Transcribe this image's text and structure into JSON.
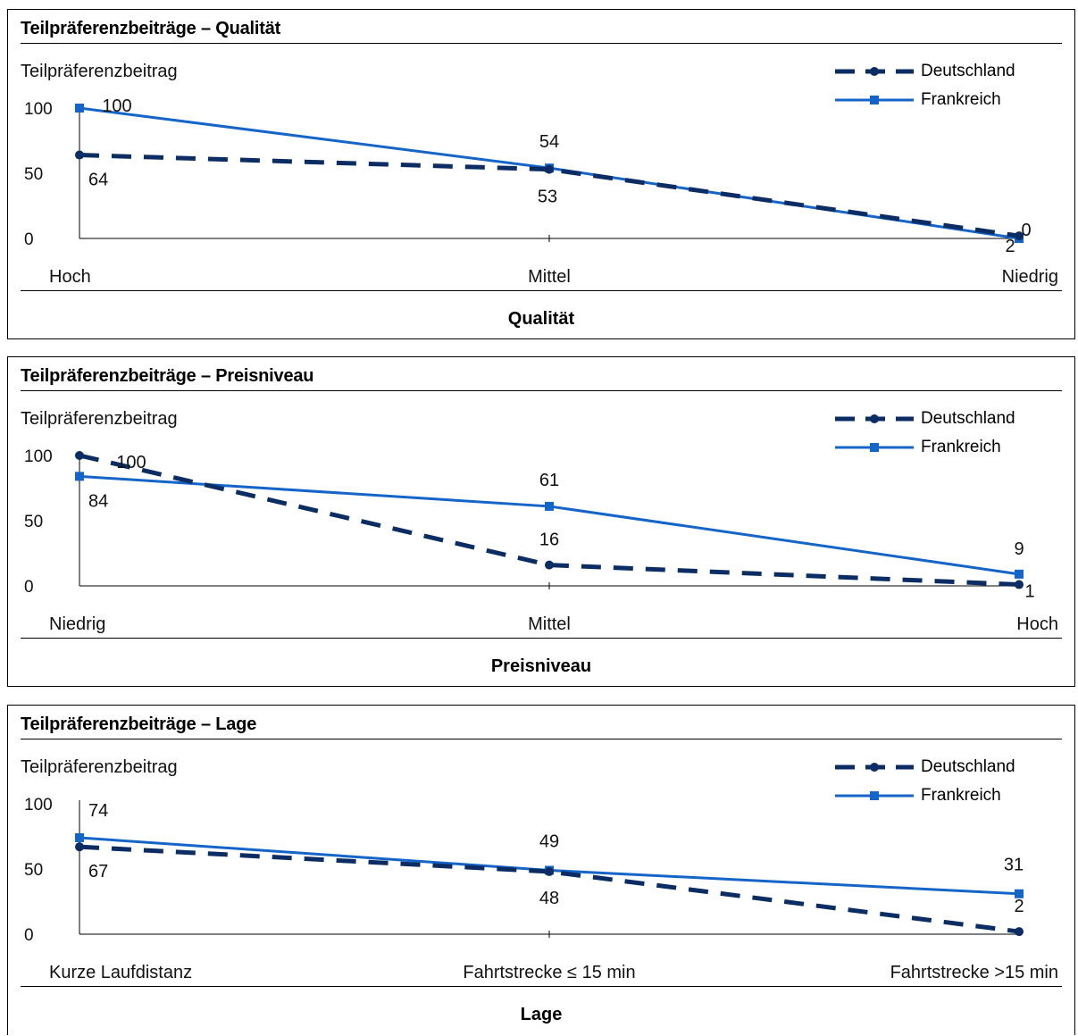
{
  "y_axis_label": "Teilpräferenzbeitrag",
  "legend": [
    {
      "name": "Deutschland",
      "color": "#0b2d63",
      "style": "dashed",
      "marker": "circle"
    },
    {
      "name": "Frankreich",
      "color": "#1565c8",
      "style": "solid",
      "marker": "square"
    }
  ],
  "panels": [
    {
      "title": "Teilpräferenzbeiträge – Qualität",
      "axis_title": "Qualität"
    },
    {
      "title": "Teilpräferenzbeiträge – Preisniveau",
      "axis_title": "Preisniveau"
    },
    {
      "title": "Teilpräferenzbeiträge – Lage",
      "axis_title": "Lage"
    }
  ],
  "chart_data": [
    {
      "type": "line",
      "title": "Teilpräferenzbeiträge – Qualität",
      "xlabel": "Qualität",
      "ylabel": "Teilpräferenzbeitrag",
      "categories": [
        "Hoch",
        "Mittel",
        "Niedrig"
      ],
      "yticks": [
        "0",
        "50",
        "100"
      ],
      "ylim": [
        0,
        100
      ],
      "series": [
        {
          "name": "Deutschland",
          "values": [
            64,
            53,
            2
          ],
          "labels": [
            "64",
            "53",
            "2"
          ]
        },
        {
          "name": "Frankreich",
          "values": [
            100,
            54,
            0
          ],
          "labels": [
            "100",
            "54",
            "0"
          ]
        }
      ]
    },
    {
      "type": "line",
      "title": "Teilpräferenzbeiträge – Preisniveau",
      "xlabel": "Preisniveau",
      "ylabel": "Teilpräferenzbeitrag",
      "categories": [
        "Niedrig",
        "Mittel",
        "Hoch"
      ],
      "yticks": [
        "0",
        "50",
        "100"
      ],
      "ylim": [
        0,
        100
      ],
      "series": [
        {
          "name": "Deutschland",
          "values": [
            100,
            16,
            1
          ],
          "labels": [
            "100",
            "16",
            "1"
          ]
        },
        {
          "name": "Frankreich",
          "values": [
            84,
            61,
            9
          ],
          "labels": [
            "84",
            "61",
            "9"
          ]
        }
      ]
    },
    {
      "type": "line",
      "title": "Teilpräferenzbeiträge – Lage",
      "xlabel": "Lage",
      "ylabel": "Teilpräferenzbeitrag",
      "categories": [
        "Kurze Laufdistanz",
        "Fahrtstrecke ≤ 15 min",
        "Fahrtstrecke >15 min"
      ],
      "yticks": [
        "0",
        "50",
        "100"
      ],
      "ylim": [
        0,
        100
      ],
      "series": [
        {
          "name": "Deutschland",
          "values": [
            67,
            48,
            2
          ],
          "labels": [
            "67",
            "48",
            "2"
          ]
        },
        {
          "name": "Frankreich",
          "values": [
            74,
            49,
            31
          ],
          "labels": [
            "74",
            "49",
            "31"
          ]
        }
      ]
    }
  ]
}
